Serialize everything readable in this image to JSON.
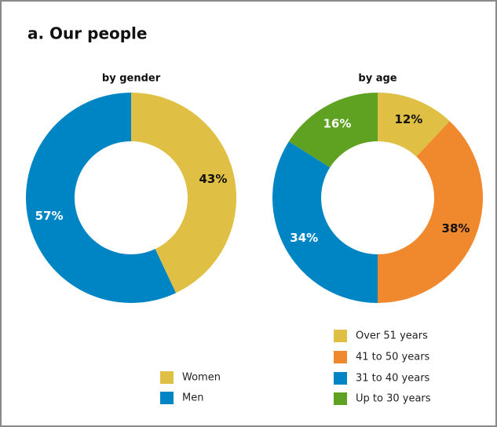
{
  "title": "a. Our people",
  "chart_data": [
    {
      "type": "donut",
      "title": "by gender",
      "categories": [
        "Women",
        "Men"
      ],
      "values": [
        43,
        57
      ],
      "value_labels": [
        "43%",
        "57%"
      ],
      "colors": [
        "#dfbf44",
        "#0085c4"
      ]
    },
    {
      "type": "donut",
      "title": "by age",
      "categories": [
        "Over 51 years",
        "41 to 50 years",
        "31 to 40 years",
        "Up to 30 years"
      ],
      "values": [
        12,
        38,
        34,
        16
      ],
      "value_labels": [
        "12%",
        "38%",
        "34%",
        "16%"
      ],
      "colors": [
        "#dfbf44",
        "#f0882e",
        "#0085c4",
        "#5fa222"
      ]
    }
  ]
}
